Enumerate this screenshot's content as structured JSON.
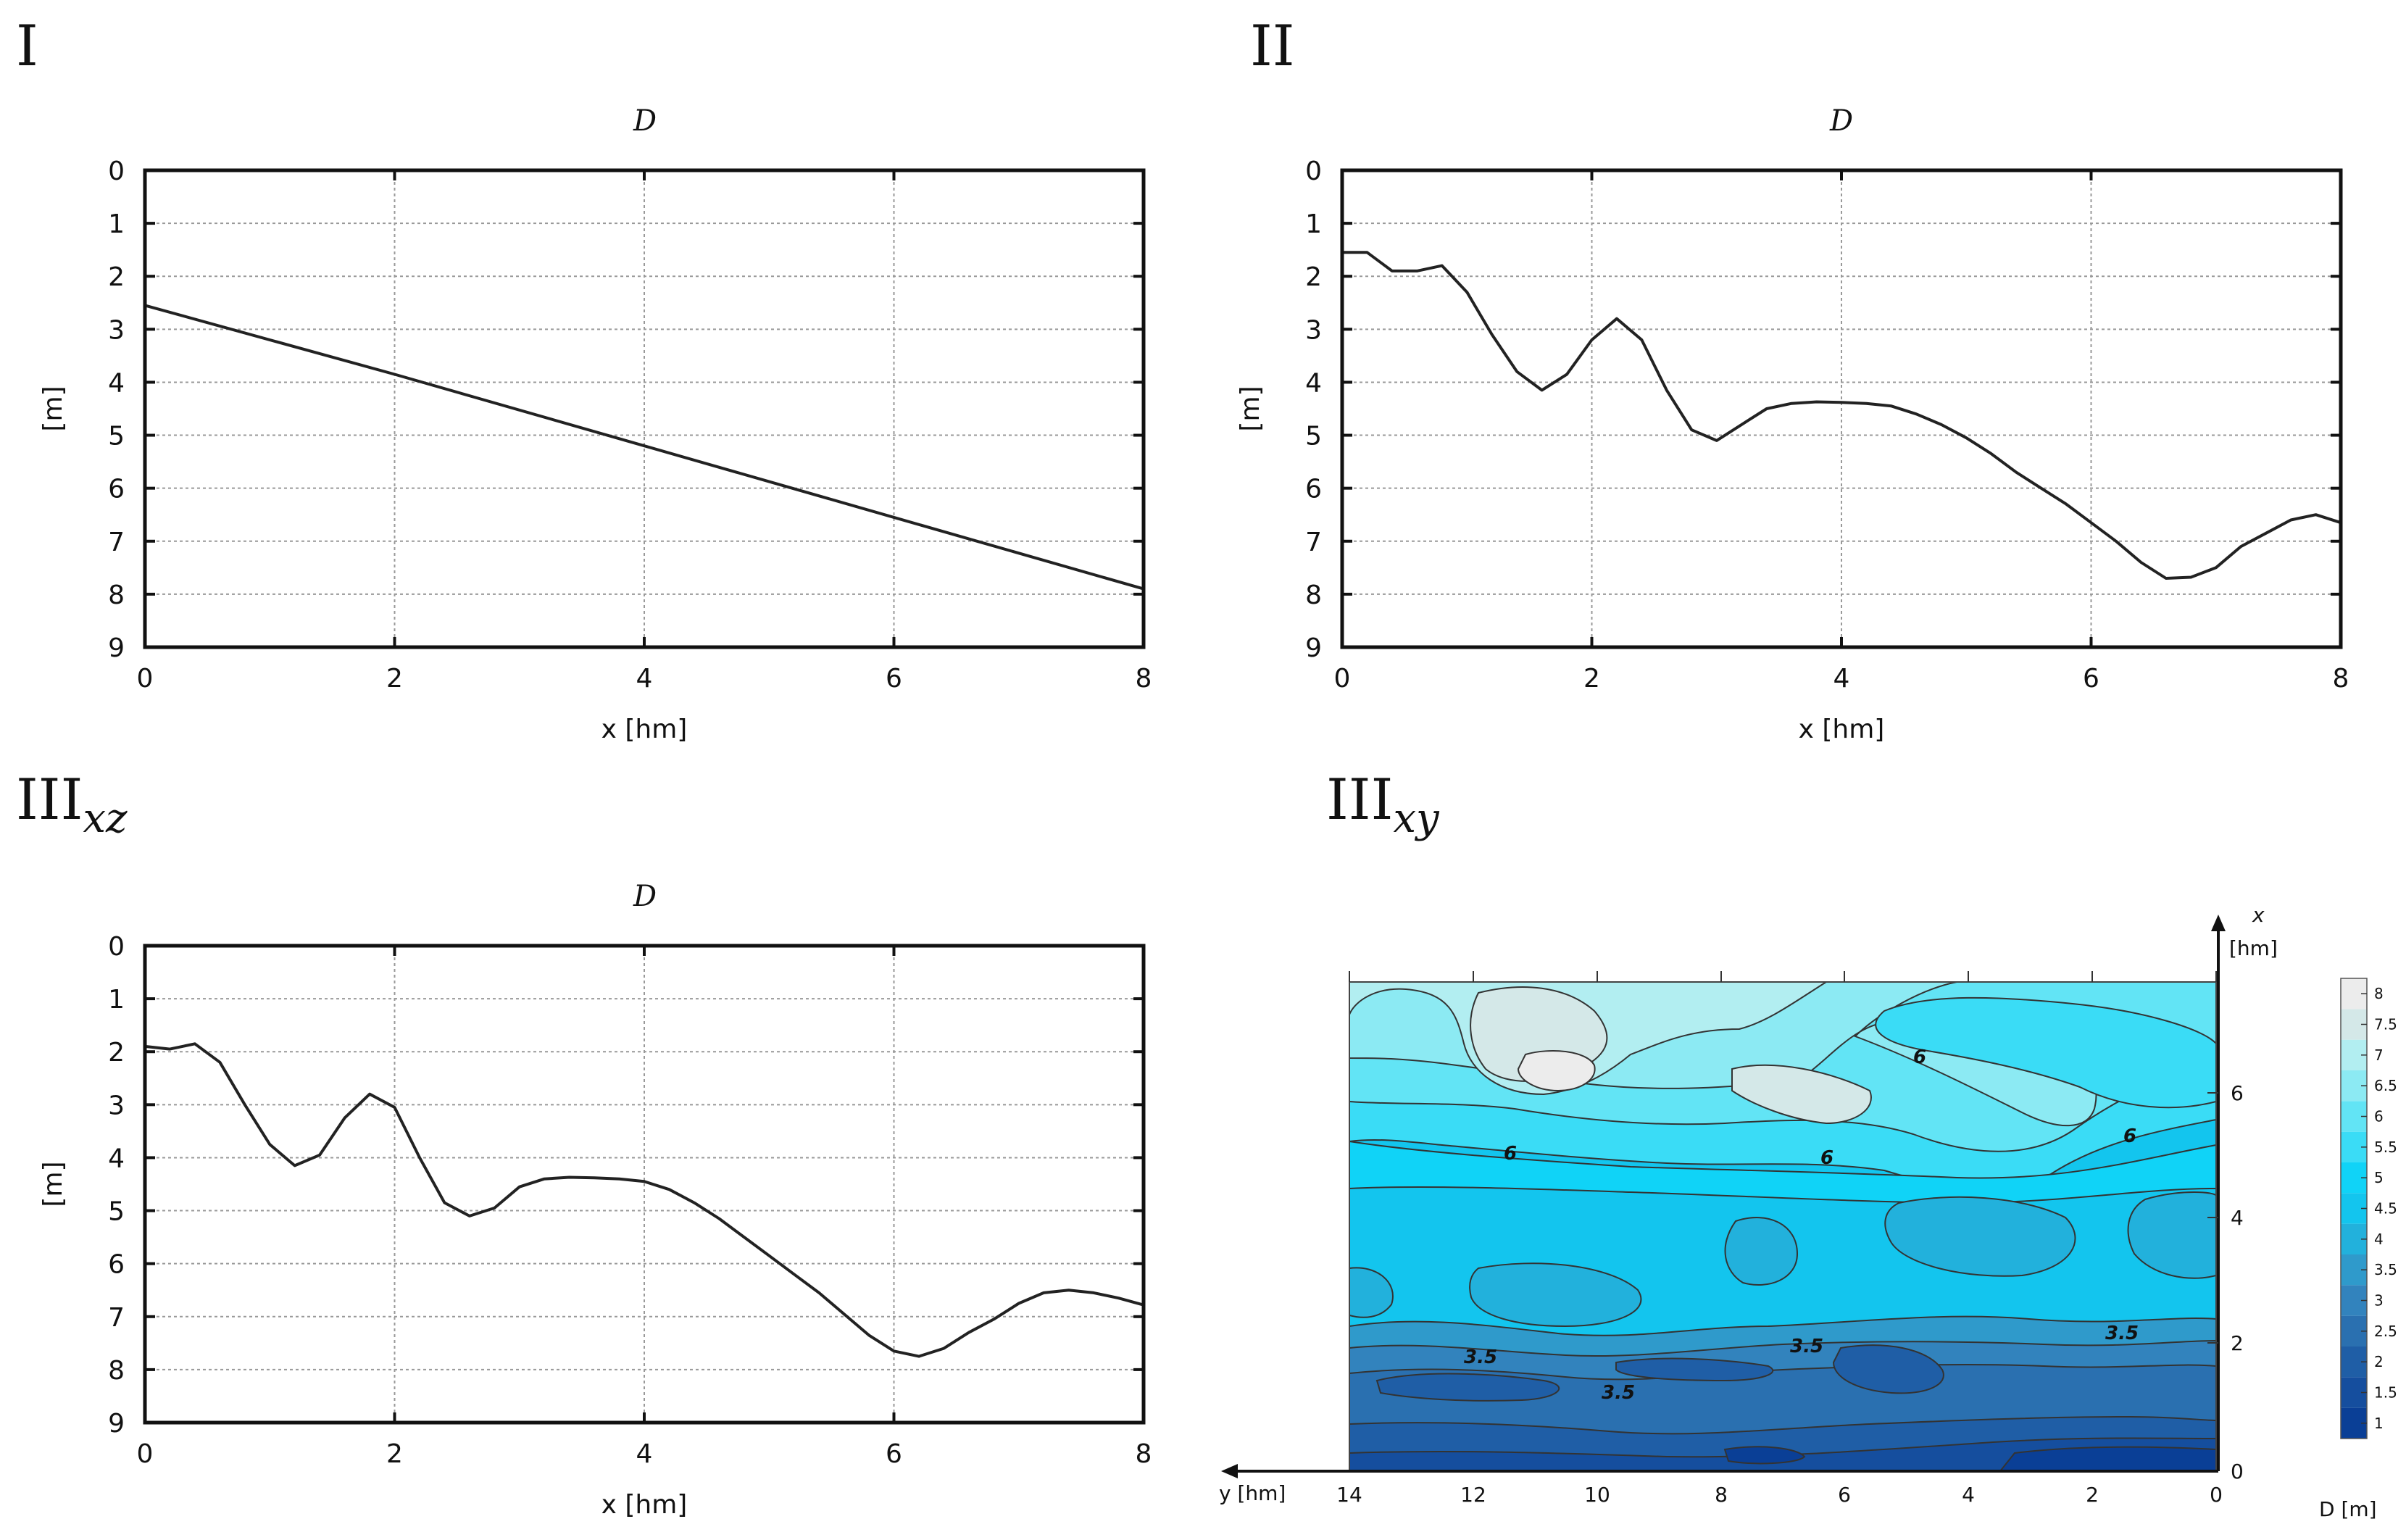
{
  "panels": {
    "p1": {
      "label": "I"
    },
    "p2": {
      "label": "II"
    },
    "p3": {
      "label": "III",
      "sub": "xz"
    },
    "p4": {
      "label": "III",
      "sub": "xy"
    }
  },
  "chart_data": [
    {
      "type": "line",
      "panel": "I",
      "title": "D",
      "xlabel": "x [hm]",
      "ylabel": "[m]",
      "xlim": [
        0,
        8
      ],
      "ylim": [
        0,
        9
      ],
      "y_inverted": true,
      "xticks": [
        "0",
        "2",
        "4",
        "6",
        "8"
      ],
      "yticks": [
        "0",
        "1",
        "2",
        "3",
        "4",
        "5",
        "6",
        "7",
        "8",
        "9"
      ],
      "grid": true,
      "series": [
        {
          "name": "D",
          "x": [
            0,
            2,
            4,
            6,
            8
          ],
          "y": [
            2.55,
            3.85,
            5.2,
            6.55,
            7.9
          ]
        }
      ]
    },
    {
      "type": "line",
      "panel": "II",
      "title": "D",
      "xlabel": "x [hm]",
      "ylabel": "[m]",
      "xlim": [
        0,
        8
      ],
      "ylim": [
        0,
        9
      ],
      "y_inverted": true,
      "xticks": [
        "0",
        "2",
        "4",
        "6",
        "8"
      ],
      "yticks": [
        "0",
        "1",
        "2",
        "3",
        "4",
        "5",
        "6",
        "7",
        "8",
        "9"
      ],
      "grid": true,
      "series": [
        {
          "name": "D",
          "x": [
            0,
            0.2,
            0.4,
            0.6,
            0.8,
            1.0,
            1.2,
            1.4,
            1.6,
            1.8,
            2.0,
            2.2,
            2.4,
            2.6,
            2.8,
            3.0,
            3.2,
            3.4,
            3.6,
            3.8,
            4.0,
            4.2,
            4.4,
            4.6,
            4.8,
            5.0,
            5.2,
            5.4,
            5.6,
            5.8,
            6.0,
            6.2,
            6.4,
            6.6,
            6.8,
            7.0,
            7.2,
            7.4,
            7.6,
            7.8,
            8.0
          ],
          "y": [
            1.55,
            1.55,
            1.9,
            1.9,
            1.8,
            2.3,
            3.1,
            3.8,
            4.15,
            3.85,
            3.2,
            2.8,
            3.2,
            4.15,
            4.9,
            5.1,
            4.8,
            4.5,
            4.4,
            4.37,
            4.38,
            4.4,
            4.45,
            4.6,
            4.8,
            5.05,
            5.35,
            5.7,
            6.0,
            6.3,
            6.65,
            7.0,
            7.4,
            7.7,
            7.68,
            7.5,
            7.1,
            6.85,
            6.6,
            6.5,
            6.65
          ]
        }
      ]
    },
    {
      "type": "line",
      "panel": "IIIxz",
      "title": "D",
      "xlabel": "x [hm]",
      "ylabel": "[m]",
      "xlim": [
        0,
        8
      ],
      "ylim": [
        0,
        9
      ],
      "y_inverted": true,
      "xticks": [
        "0",
        "2",
        "4",
        "6",
        "8"
      ],
      "yticks": [
        "0",
        "1",
        "2",
        "3",
        "4",
        "5",
        "6",
        "7",
        "8",
        "9"
      ],
      "grid": true,
      "series": [
        {
          "name": "D",
          "x": [
            0,
            0.2,
            0.4,
            0.6,
            0.8,
            1.0,
            1.2,
            1.4,
            1.6,
            1.8,
            2.0,
            2.2,
            2.4,
            2.6,
            2.8,
            3.0,
            3.2,
            3.4,
            3.6,
            3.8,
            4.0,
            4.2,
            4.4,
            4.6,
            4.8,
            5.0,
            5.2,
            5.4,
            5.6,
            5.8,
            6.0,
            6.2,
            6.4,
            6.6,
            6.8,
            7.0,
            7.2,
            7.4,
            7.6,
            7.8,
            8.0
          ],
          "y": [
            1.9,
            1.95,
            1.85,
            2.2,
            3.0,
            3.75,
            4.15,
            3.95,
            3.25,
            2.8,
            3.05,
            4.0,
            4.85,
            5.1,
            4.95,
            4.55,
            4.4,
            4.37,
            4.38,
            4.4,
            4.45,
            4.6,
            4.85,
            5.15,
            5.5,
            5.85,
            6.2,
            6.55,
            6.95,
            7.35,
            7.65,
            7.75,
            7.6,
            7.3,
            7.05,
            6.75,
            6.55,
            6.5,
            6.55,
            6.65,
            6.78
          ]
        }
      ]
    },
    {
      "type": "contour",
      "panel": "IIIxy",
      "xlabel": "y [hm]",
      "ylabel": "x [hm]",
      "x_axis_range": [
        14,
        0
      ],
      "y_axis_range": [
        0,
        7.8
      ],
      "xticks": [
        "14",
        "12",
        "10",
        "8",
        "6",
        "4",
        "2",
        "0"
      ],
      "yticks": [
        "0",
        "2",
        "4",
        "6"
      ],
      "contour_labels": [
        "6",
        "6",
        "6",
        "6",
        "3.5",
        "3.5",
        "3.5",
        "3.5"
      ],
      "colorbar": {
        "label": "D [m]",
        "levels": [
          "1",
          "1.5",
          "2",
          "2.5",
          "3",
          "3.5",
          "4",
          "4.5",
          "5",
          "5.5",
          "6",
          "6.5",
          "7",
          "7.5",
          "8"
        ],
        "colors": [
          "#0a3f96",
          "#154e9e",
          "#1f5ea6",
          "#2a70b0",
          "#3283bd",
          "#2f9acb",
          "#22b1dc",
          "#13c5ee",
          "#10d3f7",
          "#3adcf6",
          "#62e4f5",
          "#8ceaf3",
          "#b2eef1",
          "#d4e8e8",
          "#ececec"
        ]
      }
    }
  ]
}
